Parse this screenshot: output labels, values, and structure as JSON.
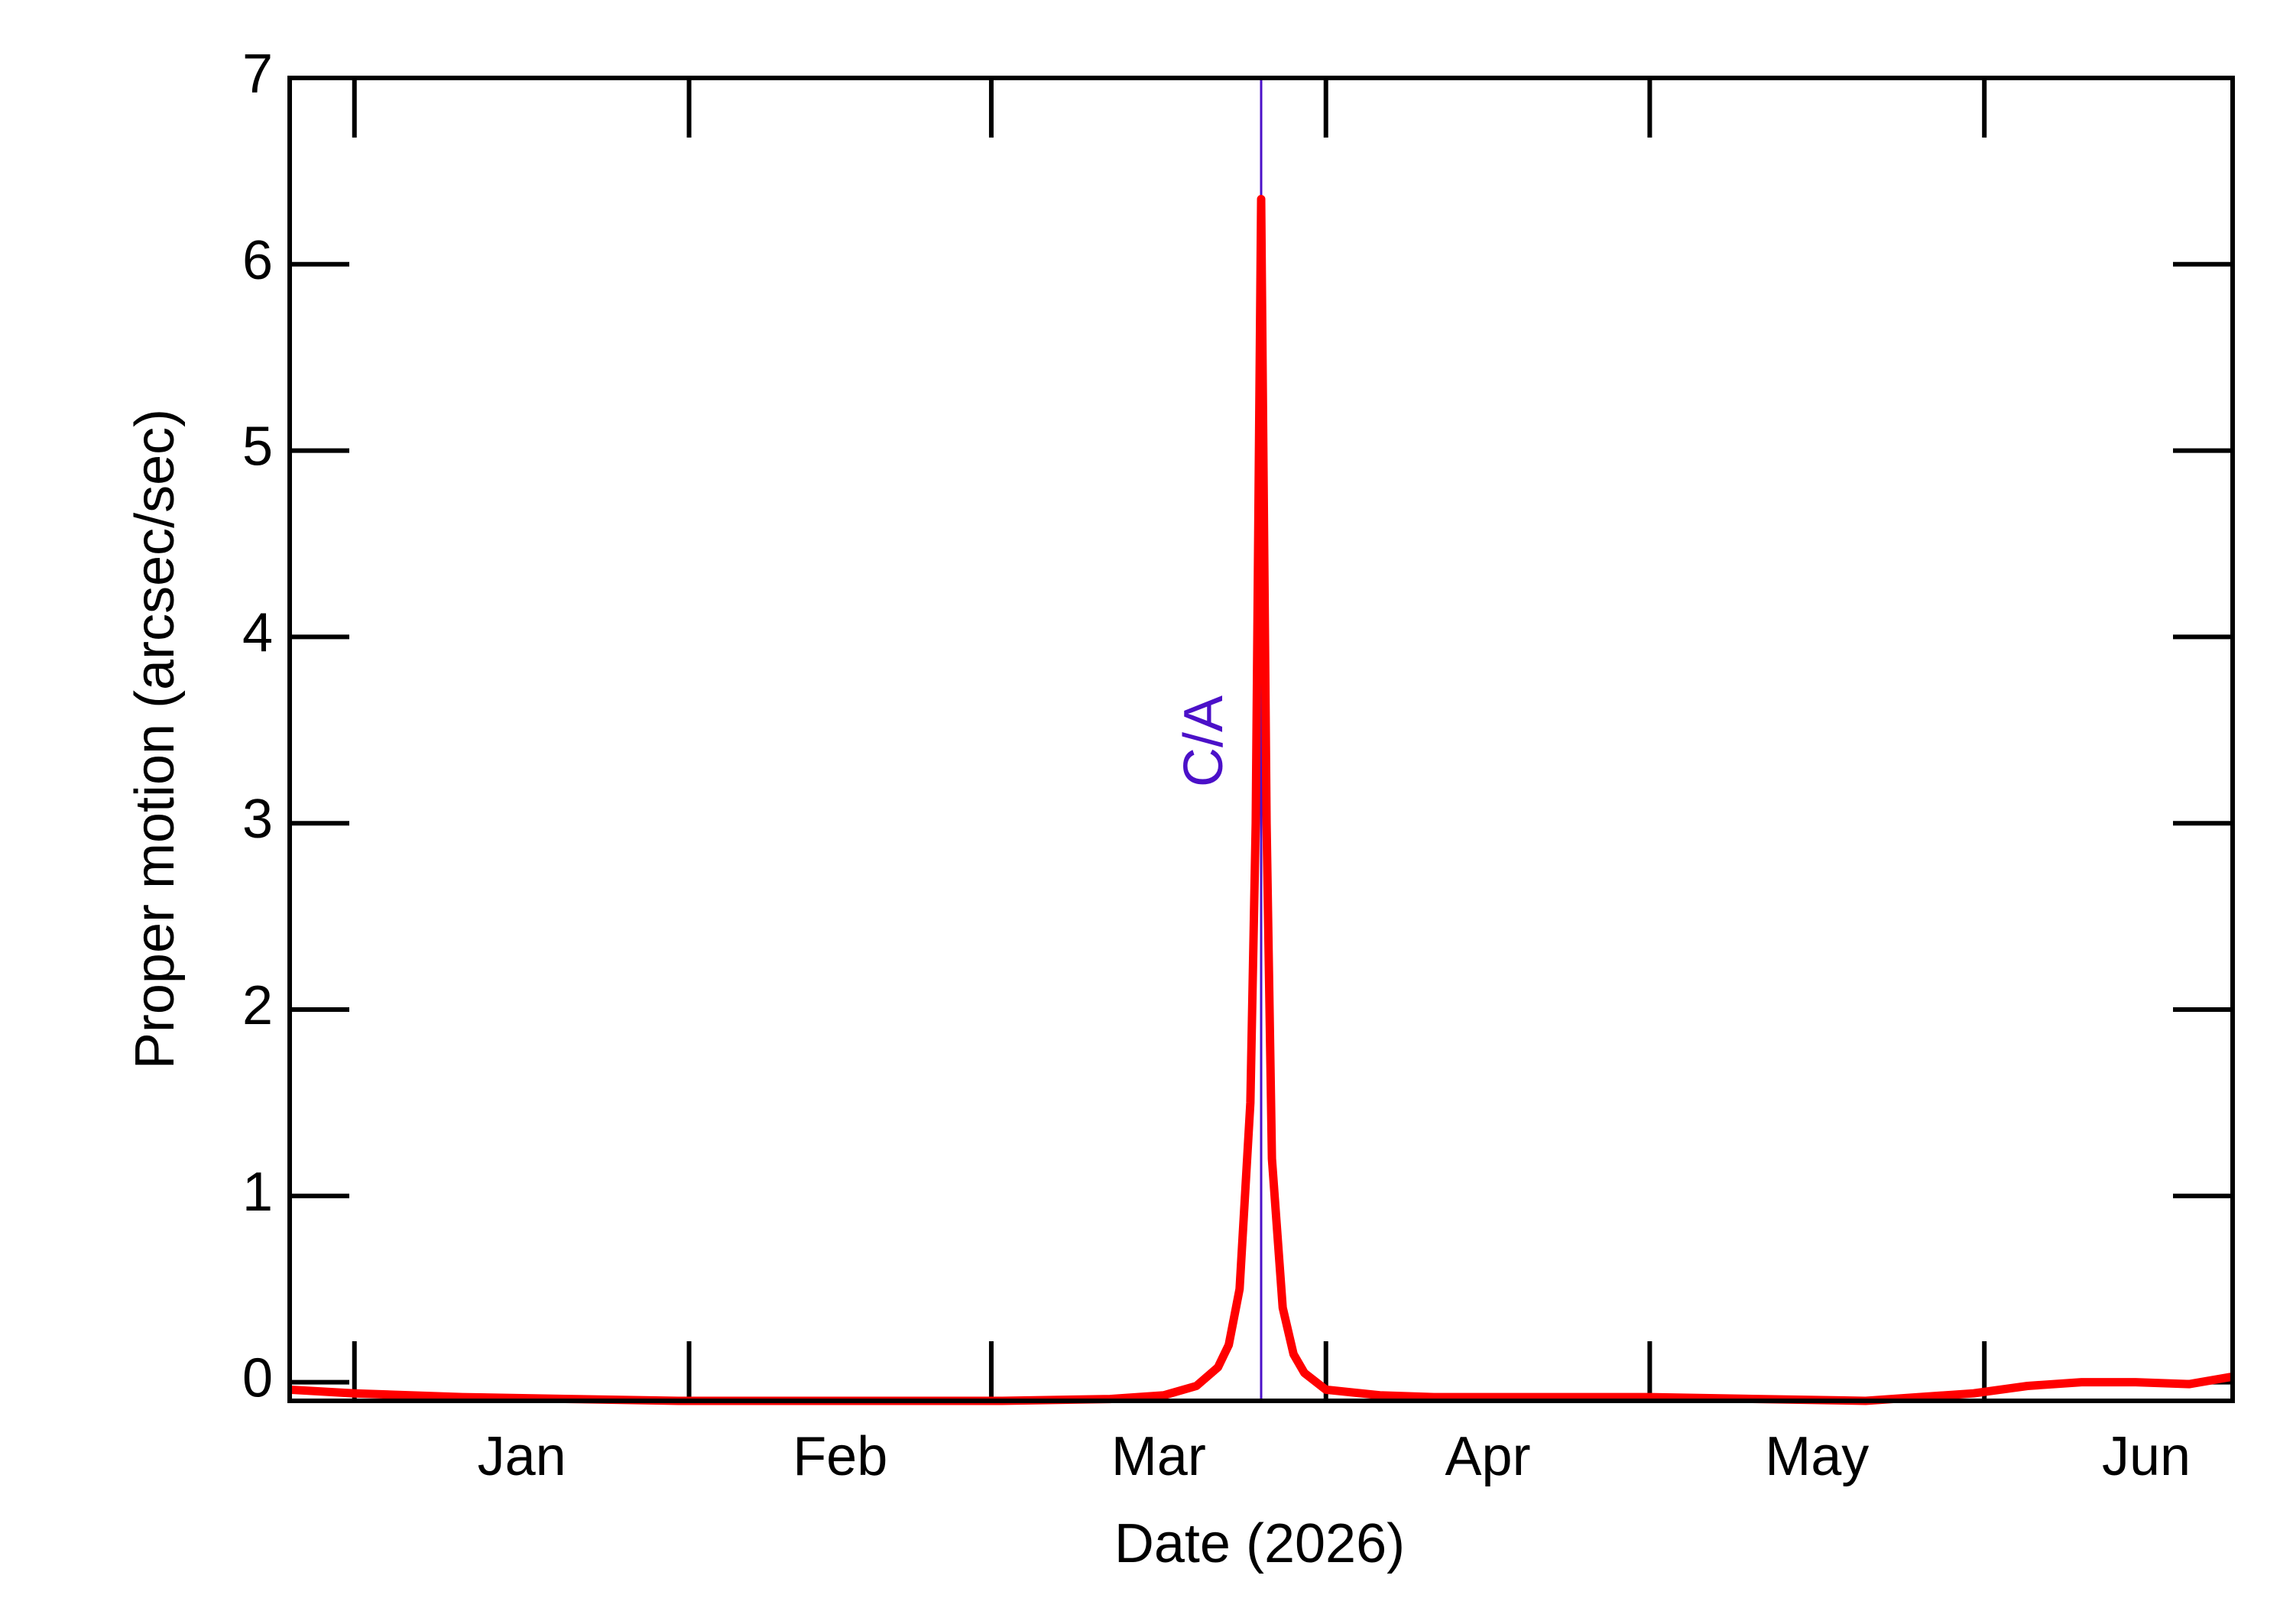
{
  "chart_data": {
    "type": "line",
    "xlabel": "Date (2026)",
    "ylabel": "Proper motion (arcsec/sec)",
    "x": [
      -6,
      0,
      10,
      20,
      30,
      40,
      50,
      60,
      70,
      75,
      78,
      80,
      81,
      82,
      83,
      83.5,
      84,
      84.5,
      85,
      86,
      87,
      88,
      90,
      95,
      100,
      110,
      120,
      130,
      140,
      150,
      155,
      160,
      165,
      170,
      174
    ],
    "values": [
      -0.04,
      -0.06,
      -0.08,
      -0.09,
      -0.1,
      -0.1,
      -0.1,
      -0.1,
      -0.09,
      -0.07,
      -0.02,
      0.08,
      0.2,
      0.5,
      1.5,
      3.0,
      6.35,
      3.0,
      1.2,
      0.4,
      0.15,
      0.05,
      -0.04,
      -0.07,
      -0.08,
      -0.08,
      -0.08,
      -0.09,
      -0.1,
      -0.06,
      -0.02,
      0.0,
      0.0,
      -0.01,
      0.03
    ],
    "color": "#ff0000",
    "xlim": [
      -6,
      174
    ],
    "xticks": [
      {
        "value": 0,
        "label": "Jan"
      },
      {
        "value": 31,
        "label": "Feb"
      },
      {
        "value": 59,
        "label": "Mar"
      },
      {
        "value": 90,
        "label": "Apr"
      },
      {
        "value": 120,
        "label": "May"
      },
      {
        "value": 151,
        "label": "Jun"
      }
    ],
    "ylim": [
      -0.1,
      7
    ],
    "yticks": [
      0,
      1,
      2,
      3,
      4,
      5,
      6,
      7
    ],
    "annotation": {
      "text": "C/A",
      "x": 84,
      "color": "#4b10c8"
    }
  }
}
